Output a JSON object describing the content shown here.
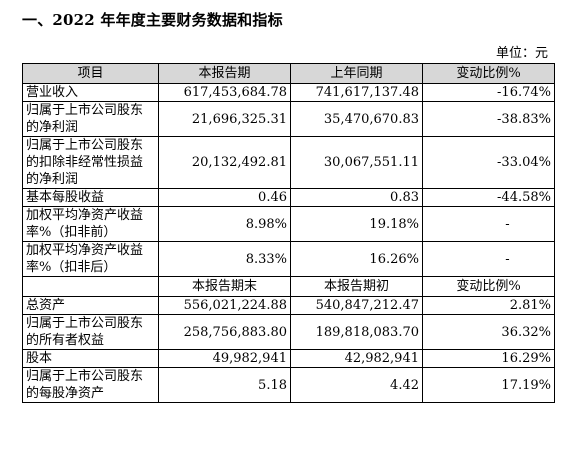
{
  "title": "一、2022 年年度主要财务数据和指标",
  "unit": "单位：元",
  "header_a": [
    "项目",
    "本报告期",
    "上年同期",
    "变动比例%"
  ],
  "rows_a": [
    {
      "label": "营业收入",
      "current": "617,453,684.78",
      "previous": "741,617,137.48",
      "change": "-16.74%",
      "lines": 1
    },
    {
      "label": "归属于上市公司股东的净利润",
      "current": "21,696,325.31",
      "previous": "35,470,670.83",
      "change": "-38.83%",
      "lines": 2
    },
    {
      "label": "归属于上市公司股东的扣除非经常性损益的净利润",
      "current": "20,132,492.81",
      "previous": "30,067,551.11",
      "change": "-33.04%",
      "lines": 3
    },
    {
      "label": "基本每股收益",
      "current": "0.46",
      "previous": "0.83",
      "change": "-44.58%",
      "lines": 1
    },
    {
      "label": "加权平均净资产收益率%（扣非前）",
      "current": "8.98%",
      "previous": "19.18%",
      "change": "-",
      "lines": 2
    },
    {
      "label": "加权平均净资产收益率%（扣非后）",
      "current": "8.33%",
      "previous": "16.26%",
      "change": "-",
      "lines": 2
    }
  ],
  "header_b": [
    "",
    "本报告期末",
    "本报告期初",
    "变动比例%"
  ],
  "rows_b": [
    {
      "label": "总资产",
      "current": "556,021,224.88",
      "previous": "540,847,212.47",
      "change": "2.81%",
      "lines": 1
    },
    {
      "label": "归属于上市公司股东的所有者权益",
      "current": "258,756,883.80",
      "previous": "189,818,083.70",
      "change": "36.32%",
      "lines": 2
    },
    {
      "label": "股本",
      "current": "49,982,941",
      "previous": "42,982,941",
      "change": "16.29%",
      "lines": 1
    },
    {
      "label": "归属于上市公司股东的每股净资产",
      "current": "5.18",
      "previous": "4.42",
      "change": "17.19%",
      "lines": 2
    }
  ]
}
